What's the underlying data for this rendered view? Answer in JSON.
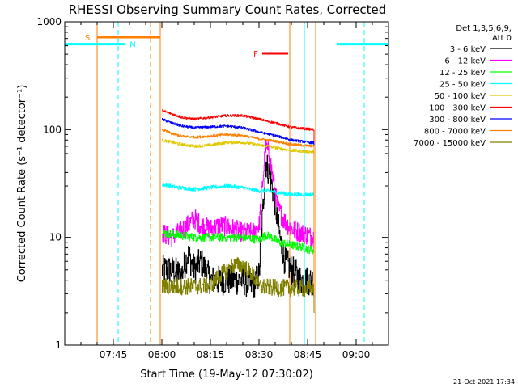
{
  "chart_data": {
    "type": "line",
    "title": "RHESSI Observing Summary Count Rates, Corrected",
    "xlabel": "Start Time (19-May-12 07:30:02)",
    "ylabel": "Corrected Count Rate (s⁻¹ detector⁻¹)",
    "y_scale": "log",
    "ylim": [
      1,
      1000
    ],
    "xlim_minutes_after_start": [
      0,
      100
    ],
    "x_tick_labels": [
      "07:45",
      "08:00",
      "08:15",
      "08:30",
      "08:45",
      "09:00"
    ],
    "x_tick_minutes": [
      15,
      30,
      45,
      60,
      75,
      90
    ],
    "y_tick_labels": [
      "1",
      "10",
      "100",
      "1000"
    ],
    "y_tick_values": [
      1,
      10,
      100,
      1000
    ],
    "legend_header": [
      "Det 1,3,5,6,9,",
      "Att 0"
    ],
    "legend": [
      {
        "name": "3 - 6 keV",
        "color": "#000000"
      },
      {
        "name": "6 - 12 keV",
        "color": "#ff00ff"
      },
      {
        "name": "12 - 25 keV",
        "color": "#00ff00"
      },
      {
        "name": "25 - 50 keV",
        "color": "#00ffff"
      },
      {
        "name": "50 - 100 keV",
        "color": "#e0c800"
      },
      {
        "name": "100 - 300 keV",
        "color": "#ff0000"
      },
      {
        "name": "300 - 800 keV",
        "color": "#0000ff"
      },
      {
        "name": "800 - 7000 keV",
        "color": "#ff7f00"
      },
      {
        "name": "7000 - 15000 keV",
        "color": "#808000"
      }
    ],
    "data_span_minutes": [
      30,
      77
    ],
    "series": [
      {
        "name": "3 - 6 keV",
        "color": "#000000",
        "noise": 0.32,
        "points": [
          [
            30,
            5
          ],
          [
            33,
            5
          ],
          [
            36,
            4.5
          ],
          [
            38,
            7
          ],
          [
            40,
            5
          ],
          [
            42,
            6
          ],
          [
            45,
            4
          ],
          [
            48,
            4
          ],
          [
            52,
            4
          ],
          [
            55,
            4
          ],
          [
            58,
            3.5
          ],
          [
            60,
            4.5
          ],
          [
            61,
            15
          ],
          [
            62,
            50
          ],
          [
            63,
            40
          ],
          [
            64,
            30
          ],
          [
            65,
            20
          ],
          [
            66,
            12
          ],
          [
            67,
            8
          ],
          [
            68,
            6
          ],
          [
            70,
            5
          ],
          [
            73,
            4
          ],
          [
            77,
            4
          ]
        ]
      },
      {
        "name": "6 - 12 keV",
        "color": "#ff00ff",
        "noise": 0.22,
        "points": [
          [
            30,
            11
          ],
          [
            33,
            10
          ],
          [
            35,
            11
          ],
          [
            38,
            13
          ],
          [
            40,
            15
          ],
          [
            42,
            13
          ],
          [
            45,
            12
          ],
          [
            48,
            13
          ],
          [
            52,
            12
          ],
          [
            55,
            11
          ],
          [
            58,
            11
          ],
          [
            60,
            13
          ],
          [
            61,
            30
          ],
          [
            62,
            70
          ],
          [
            63,
            60
          ],
          [
            64,
            40
          ],
          [
            65,
            25
          ],
          [
            66,
            18
          ],
          [
            68,
            14
          ],
          [
            70,
            12
          ],
          [
            73,
            11
          ],
          [
            77,
            10
          ]
        ]
      },
      {
        "name": "12 - 25 keV",
        "color": "#00ff00",
        "noise": 0.09,
        "points": [
          [
            30,
            11
          ],
          [
            35,
            10.5
          ],
          [
            40,
            10
          ],
          [
            45,
            10
          ],
          [
            50,
            10
          ],
          [
            55,
            10
          ],
          [
            60,
            9.5
          ],
          [
            62,
            10.5
          ],
          [
            64,
            10
          ],
          [
            66,
            9
          ],
          [
            70,
            8.5
          ],
          [
            74,
            8
          ],
          [
            77,
            7.5
          ]
        ]
      },
      {
        "name": "25 - 50 keV",
        "color": "#00ffff",
        "noise": 0.04,
        "points": [
          [
            30,
            31
          ],
          [
            35,
            29
          ],
          [
            40,
            28
          ],
          [
            45,
            29
          ],
          [
            50,
            30
          ],
          [
            55,
            29
          ],
          [
            60,
            27
          ],
          [
            63,
            27
          ],
          [
            66,
            26
          ],
          [
            70,
            25
          ],
          [
            77,
            25
          ]
        ]
      },
      {
        "name": "50 - 100 keV",
        "color": "#e0c800",
        "noise": 0.03,
        "points": [
          [
            30,
            80
          ],
          [
            35,
            74
          ],
          [
            40,
            70
          ],
          [
            45,
            72
          ],
          [
            50,
            76
          ],
          [
            55,
            76
          ],
          [
            60,
            72
          ],
          [
            63,
            70
          ],
          [
            66,
            67
          ],
          [
            70,
            64
          ],
          [
            77,
            62
          ]
        ]
      },
      {
        "name": "100 - 300 keV",
        "color": "#ff0000",
        "noise": 0.025,
        "points": [
          [
            30,
            150
          ],
          [
            33,
            140
          ],
          [
            36,
            130
          ],
          [
            40,
            125
          ],
          [
            45,
            130
          ],
          [
            50,
            135
          ],
          [
            55,
            135
          ],
          [
            60,
            125
          ],
          [
            65,
            115
          ],
          [
            70,
            105
          ],
          [
            77,
            100
          ]
        ]
      },
      {
        "name": "300 - 800 keV",
        "color": "#0000ff",
        "noise": 0.025,
        "points": [
          [
            30,
            125
          ],
          [
            33,
            115
          ],
          [
            36,
            108
          ],
          [
            40,
            104
          ],
          [
            45,
            106
          ],
          [
            50,
            108
          ],
          [
            55,
            104
          ],
          [
            60,
            95
          ],
          [
            65,
            88
          ],
          [
            70,
            80
          ],
          [
            77,
            75
          ]
        ]
      },
      {
        "name": "800 - 7000 keV",
        "color": "#ff7f00",
        "noise": 0.025,
        "points": [
          [
            30,
            100
          ],
          [
            33,
            92
          ],
          [
            36,
            87
          ],
          [
            40,
            85
          ],
          [
            45,
            87
          ],
          [
            50,
            90
          ],
          [
            55,
            88
          ],
          [
            60,
            82
          ],
          [
            65,
            78
          ],
          [
            70,
            73
          ],
          [
            77,
            70
          ]
        ]
      },
      {
        "name": "7000 - 15000 keV",
        "color": "#808000",
        "noise": 0.18,
        "points": [
          [
            30,
            3.5
          ],
          [
            35,
            3.5
          ],
          [
            40,
            3.5
          ],
          [
            45,
            3.6
          ],
          [
            48,
            4.5
          ],
          [
            52,
            5.5
          ],
          [
            55,
            5.5
          ],
          [
            58,
            4.5
          ],
          [
            60,
            3.5
          ],
          [
            65,
            3.4
          ],
          [
            70,
            3.4
          ],
          [
            77,
            3.3
          ]
        ]
      }
    ],
    "vertical_markers": [
      {
        "minute": 0,
        "color": "#00ffff",
        "dash": false
      },
      {
        "minute": 10,
        "color": "#ff7f00",
        "dash": false
      },
      {
        "minute": 16.5,
        "color": "#00ffff",
        "dash": true
      },
      {
        "minute": 26.5,
        "color": "#ff7f00",
        "dash": true
      },
      {
        "minute": 29.5,
        "color": "#ff7f00",
        "dash": false
      },
      {
        "minute": 69.5,
        "color": "#ff7f00",
        "dash": false
      },
      {
        "minute": 74,
        "color": "#00ffff",
        "dash": false
      },
      {
        "minute": 77.5,
        "color": "#ff7f00",
        "dash": false
      },
      {
        "minute": 92.5,
        "color": "#00ffff",
        "dash": true
      }
    ],
    "state_bars": [
      {
        "label": "S",
        "label_color": "#ff7f00",
        "color": "#ff7f00",
        "x0": 10,
        "x1": 29.5,
        "y": 720,
        "label_minute": 7
      },
      {
        "label": "N",
        "label_color": "#00ffff",
        "color": "#00ffff",
        "x0": 0,
        "x1": 18.8,
        "y": 620,
        "label_minute": 21
      },
      {
        "label": "",
        "label_color": "#00ffff",
        "color": "#00ffff",
        "x0": 84,
        "x1": 100,
        "y": 620
      },
      {
        "label": "F",
        "label_color": "#ff0000",
        "color": "#ff0000",
        "x0": 61,
        "x1": 69,
        "y": 510,
        "label_minute": 59
      }
    ]
  },
  "footer": {
    "date_stamp": "21-Oct-2021 17:34"
  }
}
